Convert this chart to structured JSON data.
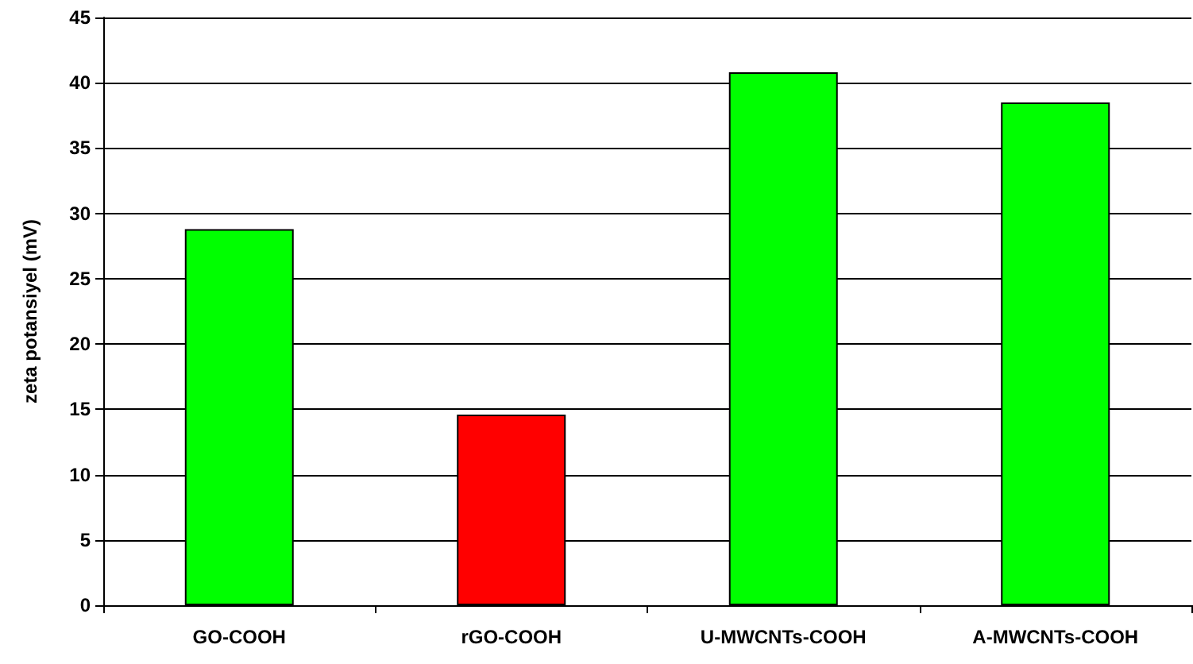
{
  "chart_data": {
    "type": "bar",
    "ylabel": "zeta potansiyel (mV)",
    "categories": [
      "GO-COOH",
      "rGO-COOH",
      "U-MWCNTs-COOH",
      "A-MWCNTs-COOH"
    ],
    "values": [
      28.8,
      14.6,
      40.8,
      38.5
    ],
    "colors": [
      "#00ff00",
      "#ff0000",
      "#00ff00",
      "#00ff00"
    ],
    "ylim": [
      0,
      45
    ],
    "yticks": [
      0,
      5,
      10,
      15,
      20,
      25,
      30,
      35,
      40,
      45
    ],
    "grid": "y"
  }
}
